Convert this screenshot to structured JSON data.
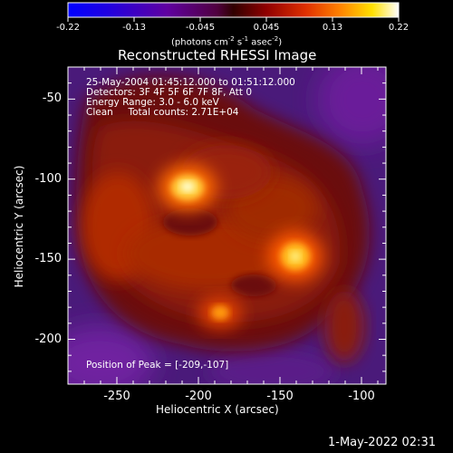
{
  "colorbar": {
    "ticks": [
      "-0.22",
      "-0.13",
      "-0.045",
      "0.045",
      "0.13",
      "0.22"
    ],
    "units": "(photons cm",
    "units_exp1": "-2",
    "units_mid": " s",
    "units_exp2": "-1",
    "units_end": " asec",
    "units_exp3": "-2",
    "units_close": ")"
  },
  "plot": {
    "title": "Reconstructed RHESSI Image",
    "xlabel": "Heliocentric X (arcsec)",
    "ylabel": "Heliocentric Y (arcsec)",
    "xticks": [
      "-250",
      "-200",
      "-150",
      "-100"
    ],
    "yticks": [
      "-50",
      "-100",
      "-150",
      "-200"
    ],
    "info_lines": [
      "25-May-2004 01:45:12.000 to 01:51:12.000",
      "Detectors: 3F 4F 5F 6F 7F 8F, Att 0",
      "Energy Range: 3.0 - 6.0 keV",
      "Clean     Total counts: 2.71E+04"
    ],
    "peak_label": "Position of Peak = [-209,-107]"
  },
  "footer": {
    "timestamp": "1-May-2022 02:31"
  },
  "colors": {
    "background": "#000000",
    "foreground": "#ffffff"
  }
}
